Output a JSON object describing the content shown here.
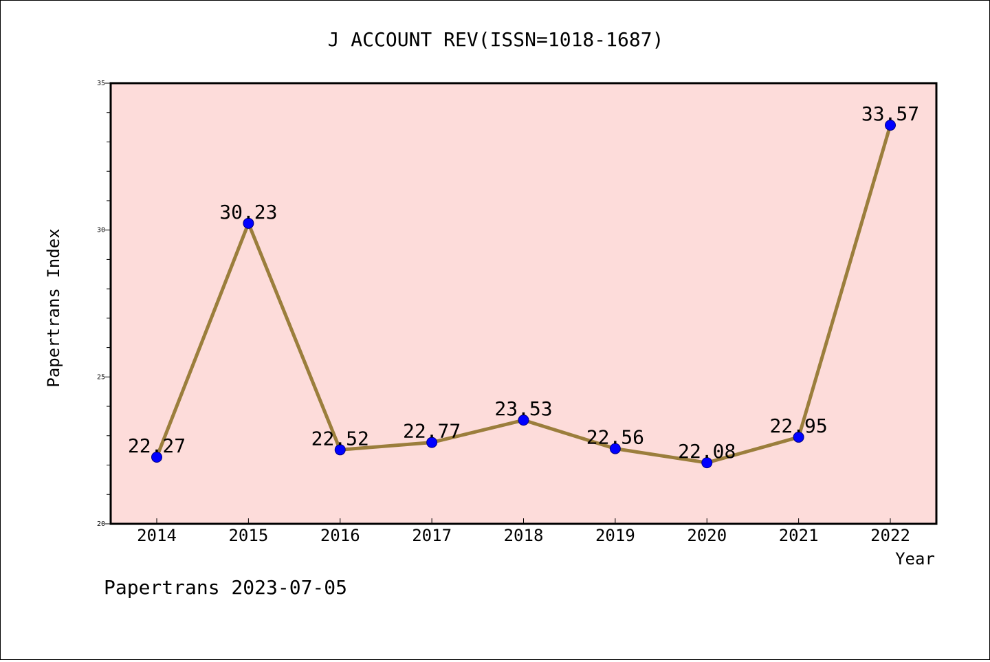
{
  "chart_data": {
    "type": "line",
    "title": "J ACCOUNT REV(ISSN=1018-1687)",
    "xlabel": "Year",
    "ylabel": "Papertrans Index",
    "categories": [
      "2014",
      "2015",
      "2016",
      "2017",
      "2018",
      "2019",
      "2020",
      "2021",
      "2022"
    ],
    "series": [
      {
        "values": [
          22.27,
          30.23,
          22.52,
          22.77,
          23.53,
          22.56,
          22.08,
          22.95,
          33.57
        ],
        "labels": [
          "22.27",
          "30.23",
          "22.52",
          "22.77",
          "23.53",
          "22.56",
          "22.08",
          "22.95",
          "33.57"
        ]
      }
    ],
    "ylim": [
      20,
      35
    ],
    "y_ticks": [
      "20",
      "25",
      "30",
      "35"
    ],
    "grid": false,
    "legend": "none",
    "colors": {
      "plot_background": "#FDDCDA",
      "line": "#9B7E3C",
      "marker": "#0000FF",
      "marker_edge": "#000080"
    },
    "footer": "Papertrans 2023-07-05"
  }
}
